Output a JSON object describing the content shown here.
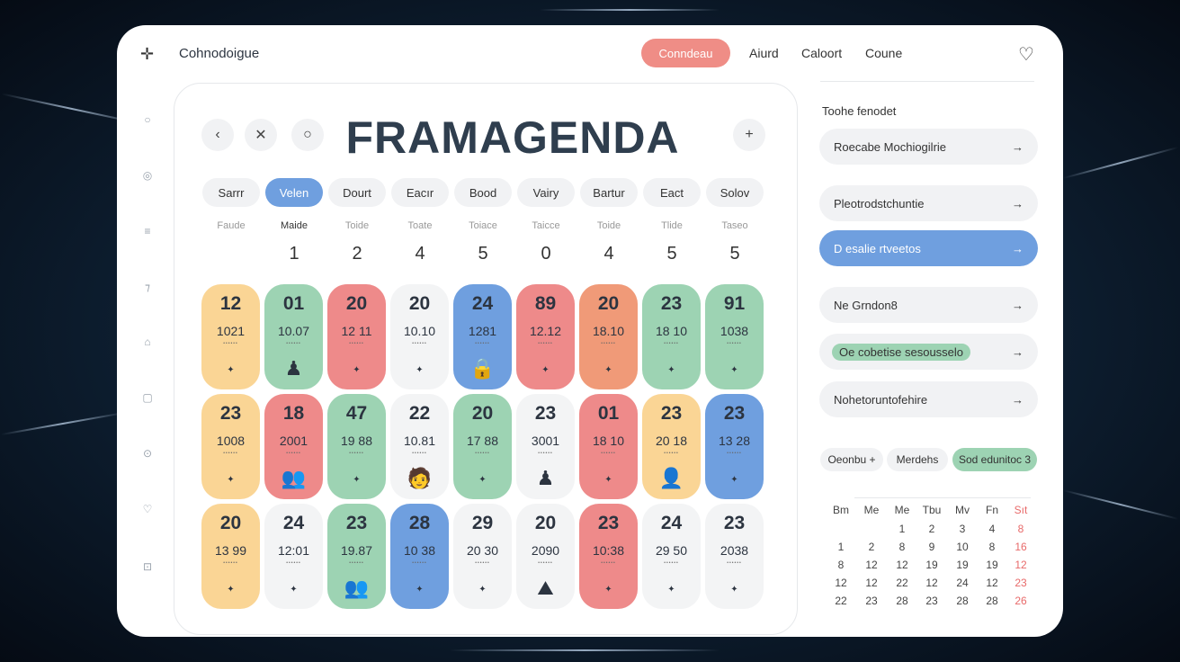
{
  "header": {
    "logo_icon": "sparkle-cross-icon",
    "title": "Cohnodoigue",
    "active_pill": "Conndeau",
    "links": [
      "Aiurd",
      "Caloort",
      "Coune"
    ],
    "heart_icon": "heart-icon"
  },
  "sidebar": {
    "icons": [
      "circle-icon",
      "badge-icon",
      "menu-icon",
      "pen-icon",
      "bell-icon",
      "square-icon",
      "target-icon",
      "heart-icon",
      "inbox-icon"
    ]
  },
  "calendar": {
    "title": "FRAMAGENDA",
    "nav": {
      "prev": "‹",
      "close": "✕",
      "circle": "○",
      "add": "+"
    },
    "chips": [
      "Sarrr",
      "Velen",
      "Dourt",
      "Eacır",
      "Bood",
      "Vairy",
      "Bartur",
      "Eact",
      "Solov"
    ],
    "active_chip": 1,
    "labels": [
      "Faude",
      "Maide",
      "Toide",
      "Toate",
      "Toiace",
      "Taicce",
      "Toide",
      "Tlide",
      "Taseo"
    ],
    "numbers": [
      "",
      "1",
      "2",
      "4",
      "5",
      "0",
      "4",
      "5",
      "5"
    ],
    "cards": [
      {
        "day": "12",
        "time": "1021",
        "color": "#fad595",
        "icon": ""
      },
      {
        "day": "01",
        "time": "10.07",
        "color": "#9dd3b3",
        "icon": "person"
      },
      {
        "day": "20",
        "time": "12 11",
        "color": "#ee8a8a",
        "icon": ""
      },
      {
        "day": "20",
        "time": "10.10",
        "color": "#f3f4f5",
        "icon": ""
      },
      {
        "day": "24",
        "time": "1281",
        "color": "#6f9fdf",
        "icon": "lock"
      },
      {
        "day": "89",
        "time": "12.12",
        "color": "#ee8a8a",
        "icon": ""
      },
      {
        "day": "20",
        "time": "18.10",
        "color": "#f09a78",
        "icon": ""
      },
      {
        "day": "23",
        "time": "18 10",
        "color": "#9dd3b3",
        "icon": ""
      },
      {
        "day": "91",
        "time": "1038",
        "color": "#9dd3b3",
        "icon": ""
      },
      {
        "day": "23",
        "time": "1008",
        "color": "#fad595",
        "icon": ""
      },
      {
        "day": "18",
        "time": "2001",
        "color": "#ee8a8a",
        "icon": "group"
      },
      {
        "day": "47",
        "time": "19 88",
        "color": "#9dd3b3",
        "icon": ""
      },
      {
        "day": "22",
        "time": "10.81",
        "color": "#f3f4f5",
        "icon": "avatar"
      },
      {
        "day": "20",
        "time": "17 88",
        "color": "#9dd3b3",
        "icon": ""
      },
      {
        "day": "23",
        "time": "3001",
        "color": "#f3f4f5",
        "icon": "person"
      },
      {
        "day": "01",
        "time": "18 10",
        "color": "#ee8a8a",
        "icon": ""
      },
      {
        "day": "23",
        "time": "20 18",
        "color": "#fad595",
        "icon": "portrait"
      },
      {
        "day": "23",
        "time": "13 28",
        "color": "#6f9fdf",
        "icon": ""
      },
      {
        "day": "20",
        "time": "13 99",
        "color": "#fad595",
        "icon": ""
      },
      {
        "day": "24",
        "time": "12:01",
        "color": "#f3f4f5",
        "icon": ""
      },
      {
        "day": "23",
        "time": "19.87",
        "color": "#9dd3b3",
        "icon": "group"
      },
      {
        "day": "28",
        "time": "10 38",
        "color": "#6f9fdf",
        "icon": ""
      },
      {
        "day": "29",
        "time": "20 30",
        "color": "#f3f4f5",
        "icon": ""
      },
      {
        "day": "20",
        "time": "2090",
        "color": "#f3f4f5",
        "icon": "scene"
      },
      {
        "day": "23",
        "time": "10:38",
        "color": "#ee8a8a",
        "icon": ""
      },
      {
        "day": "24",
        "time": "29 50",
        "color": "#f3f4f5",
        "icon": ""
      },
      {
        "day": "23",
        "time": "2038",
        "color": "#f3f4f5",
        "icon": ""
      }
    ]
  },
  "right": {
    "heading": "Toohe fenodet",
    "items": [
      {
        "label": "Roecabe Mochiogilrie",
        "style": ""
      },
      {
        "label": "Pleotrodstchuntie",
        "style": ""
      },
      {
        "label": "D esalie rtveetos",
        "style": "blue"
      },
      {
        "label": "Ne Grndon8",
        "style": ""
      },
      {
        "label": "Oe cobetise sesousselo",
        "style": "tag"
      },
      {
        "label": "Nohetoruntofehire",
        "style": ""
      }
    ],
    "arrow": "→",
    "chips": [
      "Oeonbu +",
      "Merdehs",
      "Sod edunitoc 3"
    ],
    "mini_calendar": {
      "weekdays": [
        "Bm",
        "Me",
        "Me",
        "Tbu",
        "Mv",
        "Fn",
        "Sıt"
      ],
      "rows": [
        [
          "",
          "",
          "1",
          "2",
          "3",
          "4",
          "8"
        ],
        [
          "1",
          "2",
          "8",
          "9",
          "10",
          "8",
          "16"
        ],
        [
          "8",
          "12",
          "12",
          "19",
          "19",
          "19",
          "12"
        ],
        [
          "12",
          "12",
          "22",
          "12",
          "24",
          "12",
          "23"
        ],
        [
          "22",
          "23",
          "28",
          "23",
          "28",
          "28",
          "26"
        ]
      ]
    }
  }
}
